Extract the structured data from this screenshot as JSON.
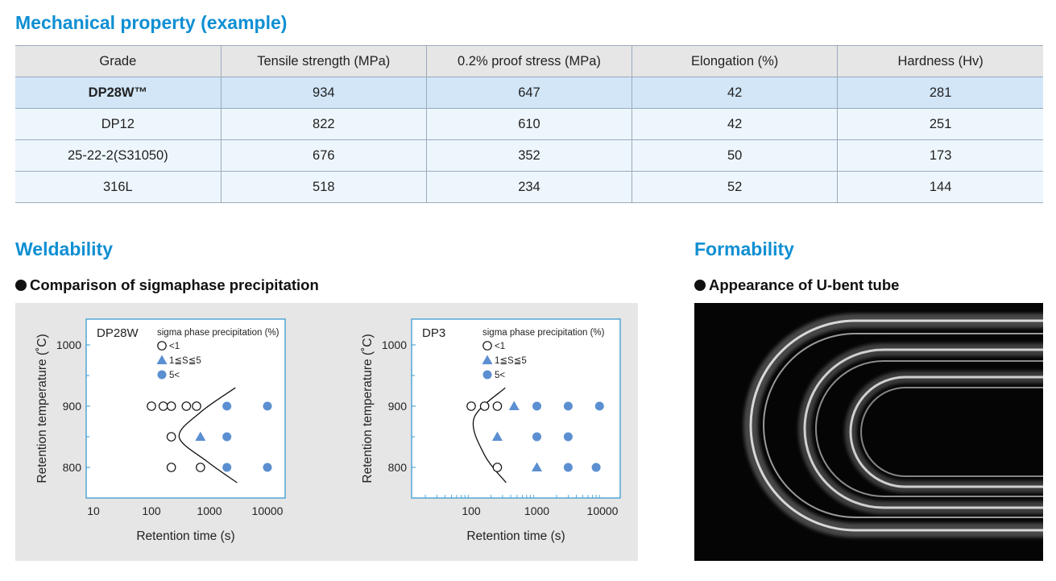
{
  "mechanical": {
    "title": "Mechanical property (example)",
    "headers": [
      "Grade",
      "Tensile strength (MPa)",
      "0.2% proof stress (MPa)",
      "Elongation (%)",
      "Hardness (Hv)"
    ],
    "rows": [
      [
        "DP28W™",
        "934",
        "647",
        "42",
        "281"
      ],
      [
        "DP12",
        "822",
        "610",
        "42",
        "251"
      ],
      [
        "25-22-2(S31050)",
        "676",
        "352",
        "50",
        "173"
      ],
      [
        "316L",
        "518",
        "234",
        "52",
        "144"
      ]
    ]
  },
  "weldability": {
    "title": "Weldability",
    "subtitle": "Comparison of sigmaphase precipitation"
  },
  "formability": {
    "title": "Formability",
    "subtitle": "Appearance of U-bent tube"
  },
  "colors": {
    "accent": "#0f8fd3",
    "marker_fill": "#5b8fd1",
    "highlight_row": "#d2e6f8",
    "row_bg": "#eef6fd",
    "header_bg": "#e6e6e6"
  },
  "chart_data": [
    {
      "type": "scatter",
      "title": "DP28W",
      "xlabel": "Retention time (s)",
      "ylabel": "Retention temperature (˚C)",
      "x_scale": "log",
      "xlim": [
        10,
        30000
      ],
      "ylim": [
        760,
        1040
      ],
      "x_ticks": [
        "10",
        "100",
        "1000",
        "10000"
      ],
      "y_ticks": [
        "800",
        "900",
        "1000"
      ],
      "legend_title": "sigma phase precipitation (%)",
      "legend": [
        {
          "marker": "circle-open",
          "label": "<1"
        },
        {
          "marker": "triangle",
          "label": "1≦S≦5"
        },
        {
          "marker": "circle-filled",
          "label": "5<"
        }
      ],
      "series": [
        {
          "name": "<1",
          "points": [
            [
              100,
              900
            ],
            [
              160,
              900
            ],
            [
              220,
              900
            ],
            [
              400,
              900
            ],
            [
              600,
              900
            ],
            [
              220,
              850
            ],
            [
              220,
              800
            ],
            [
              700,
              800
            ]
          ]
        },
        {
          "name": "1≦S≦5",
          "points": [
            [
              700,
              850
            ]
          ]
        },
        {
          "name": "5<",
          "points": [
            [
              2000,
              900
            ],
            [
              10000,
              900
            ],
            [
              2000,
              850
            ],
            [
              2000,
              800
            ],
            [
              10000,
              800
            ]
          ]
        }
      ],
      "boundary_curve": [
        [
          2800,
          930
        ],
        [
          700,
          890
        ],
        [
          300,
          850
        ],
        [
          900,
          810
        ],
        [
          3000,
          775
        ]
      ]
    },
    {
      "type": "scatter",
      "title": "DP3",
      "xlabel": "Retention time (s)",
      "ylabel": "Retention temperature (˚C)",
      "x_scale": "log",
      "xlim": [
        20,
        30000
      ],
      "ylim": [
        760,
        1040
      ],
      "x_ticks": [
        "100",
        "1000",
        "10000"
      ],
      "y_ticks": [
        "800",
        "900",
        "1000"
      ],
      "legend_title": "sigma phase precipitation (%)",
      "legend": [
        {
          "marker": "circle-open",
          "label": "<1"
        },
        {
          "marker": "triangle",
          "label": "1≦S≦5"
        },
        {
          "marker": "circle-filled",
          "label": "5<"
        }
      ],
      "series": [
        {
          "name": "<1",
          "points": [
            [
              100,
              900
            ],
            [
              160,
              900
            ],
            [
              250,
              900
            ],
            [
              250,
              800
            ]
          ]
        },
        {
          "name": "1≦S≦5",
          "points": [
            [
              450,
              900
            ],
            [
              250,
              850
            ],
            [
              1000,
              800
            ]
          ]
        },
        {
          "name": "5<",
          "points": [
            [
              1000,
              900
            ],
            [
              3000,
              900
            ],
            [
              9000,
              900
            ],
            [
              1000,
              850
            ],
            [
              3000,
              850
            ],
            [
              3000,
              800
            ],
            [
              8000,
              800
            ]
          ]
        }
      ],
      "boundary_curve": [
        [
          330,
          930
        ],
        [
          110,
          880
        ],
        [
          160,
          820
        ],
        [
          340,
          775
        ]
      ]
    }
  ]
}
